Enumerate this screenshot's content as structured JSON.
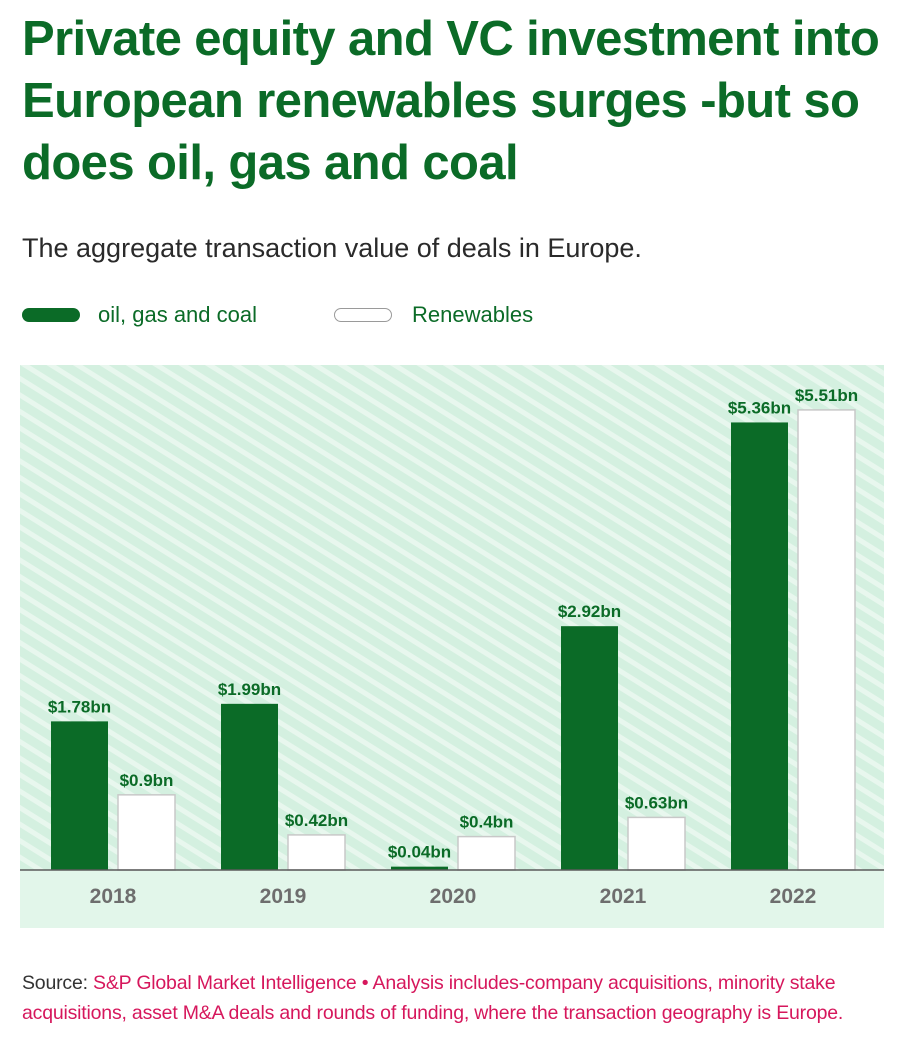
{
  "header": {
    "title": "Private equity and VC investment into European renewables surges -but so does oil, gas and coal",
    "subtitle": "The aggregate transaction value of deals in Europe."
  },
  "legend": {
    "items": [
      {
        "label": "oil, gas and coal",
        "color": "#0b6b27"
      },
      {
        "label": "Renewables",
        "color": "#ffffff"
      }
    ]
  },
  "colors": {
    "accent": "#0b6b27",
    "plot_background": "#d4f0e0",
    "hatch": "#e8f7ee",
    "axis_band": "#e2f6ea",
    "source_text": "#d6175c"
  },
  "chart_data": {
    "type": "bar",
    "categories": [
      "2018",
      "2019",
      "2020",
      "2021",
      "2022"
    ],
    "series": [
      {
        "name": "oil, gas and coal",
        "values": [
          1.78,
          1.99,
          0.04,
          2.92,
          5.36
        ],
        "labels": [
          "$1.78bn",
          "$1.99bn",
          "$0.04bn",
          "$2.92bn",
          "$5.36bn"
        ]
      },
      {
        "name": "Renewables",
        "values": [
          0.9,
          0.42,
          0.4,
          0.63,
          5.51
        ],
        "labels": [
          "$0.9bn",
          "$0.42bn",
          "$0.4bn",
          "$0.63bn",
          "$5.51bn"
        ]
      }
    ],
    "ylim": [
      0,
      6
    ],
    "grid": false,
    "legend_position": "top-left"
  },
  "footer": {
    "source_prefix": "Source:",
    "source_text": "S&P Global Market Intelligence • Analysis includes-company acquisitions, minority stake acquisitions, asset M&A deals and rounds of funding, where the transaction geography is Europe."
  }
}
